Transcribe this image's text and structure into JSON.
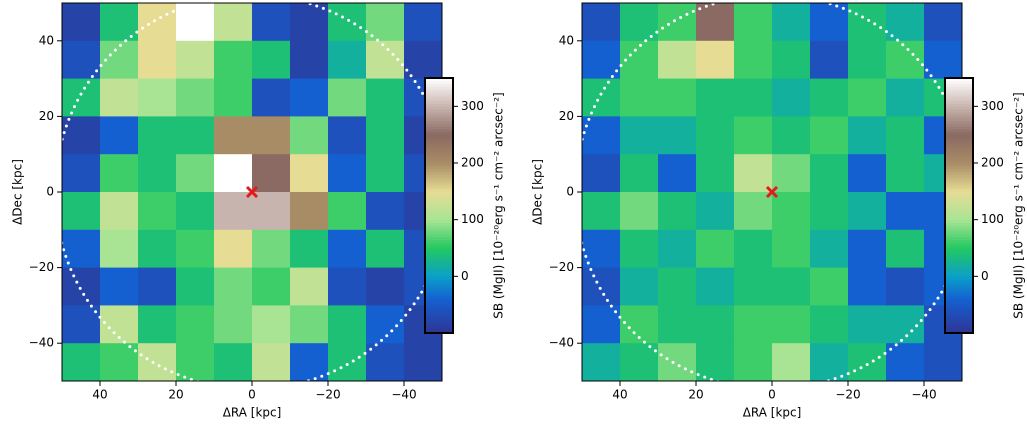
{
  "chart_data": [
    {
      "type": "heatmap",
      "xlabel": "ΔRA [kpc]",
      "ylabel": "ΔDec [kpc]",
      "xlim": [
        50,
        -50
      ],
      "ylim": [
        -50,
        50
      ],
      "xticks": [
        40,
        20,
        0,
        {
          "value": -20,
          "label": "−20"
        },
        {
          "value": -40,
          "label": "−40"
        }
      ],
      "yticks": [
        {
          "value": -40,
          "label": "−40"
        },
        {
          "value": -20,
          "label": "−20"
        },
        0,
        20,
        40
      ],
      "z": [
        [
          -80,
          40,
          150,
          350,
          120,
          -60,
          -80,
          40,
          80,
          -60
        ],
        [
          -60,
          80,
          150,
          120,
          60,
          40,
          -80,
          20,
          120,
          -80
        ],
        [
          40,
          120,
          100,
          80,
          60,
          -60,
          -40,
          80,
          40,
          -60
        ],
        [
          -80,
          -40,
          40,
          40,
          200,
          200,
          80,
          -60,
          40,
          -80
        ],
        [
          -60,
          60,
          40,
          80,
          350,
          250,
          150,
          -40,
          40,
          -60
        ],
        [
          40,
          120,
          60,
          40,
          300,
          300,
          200,
          60,
          -60,
          -80
        ],
        [
          -40,
          100,
          40,
          60,
          150,
          80,
          40,
          -40,
          40,
          -60
        ],
        [
          -80,
          -40,
          -60,
          40,
          80,
          60,
          120,
          -60,
          -80,
          -60
        ],
        [
          -60,
          120,
          40,
          60,
          80,
          100,
          80,
          40,
          -40,
          -80
        ],
        [
          40,
          60,
          120,
          60,
          40,
          120,
          -40,
          40,
          -60,
          -80
        ]
      ],
      "zlim": [
        -100,
        350
      ],
      "zticks": [
        0,
        100,
        200,
        300
      ],
      "colorbar_label": "SB (MgII) [10⁻²⁰erg s⁻¹ cm⁻² arcsec⁻²]",
      "marker": {
        "x": 0,
        "y": 0,
        "color": "#e41a1c"
      },
      "colormap": [
        {
          "value": -100,
          "color": "#2f3494"
        },
        {
          "value": -40,
          "color": "#1560d0"
        },
        {
          "value": 0,
          "color": "#0aa0c8"
        },
        {
          "value": 50,
          "color": "#22c860"
        },
        {
          "value": 100,
          "color": "#a8e494"
        },
        {
          "value": 150,
          "color": "#e6dc94"
        },
        {
          "value": 200,
          "color": "#a88c66"
        },
        {
          "value": 250,
          "color": "#8a6a62"
        },
        {
          "value": 300,
          "color": "#c8b4ae"
        },
        {
          "value": 350,
          "color": "#ffffff"
        }
      ]
    },
    {
      "type": "heatmap",
      "xlabel": "ΔRA [kpc]",
      "ylabel": "ΔDec [kpc]",
      "xlim": [
        50,
        -50
      ],
      "ylim": [
        -50,
        50
      ],
      "xticks": [
        40,
        20,
        0,
        {
          "value": -20,
          "label": "−20"
        },
        {
          "value": -40,
          "label": "−40"
        }
      ],
      "yticks": [
        {
          "value": -40,
          "label": "−40"
        },
        {
          "value": -20,
          "label": "−20"
        },
        0,
        20,
        40
      ],
      "z": [
        [
          -60,
          40,
          60,
          250,
          60,
          20,
          -40,
          40,
          20,
          -60
        ],
        [
          -40,
          60,
          120,
          150,
          60,
          40,
          -60,
          40,
          60,
          -40
        ],
        [
          40,
          60,
          60,
          40,
          40,
          20,
          40,
          60,
          20,
          40
        ],
        [
          -40,
          20,
          20,
          40,
          60,
          40,
          60,
          20,
          40,
          -40
        ],
        [
          -60,
          40,
          -40,
          40,
          120,
          80,
          40,
          -40,
          40,
          20
        ],
        [
          40,
          80,
          40,
          20,
          80,
          60,
          40,
          20,
          -40,
          -40
        ],
        [
          -40,
          40,
          20,
          60,
          40,
          60,
          20,
          -40,
          40,
          -40
        ],
        [
          -60,
          20,
          40,
          20,
          40,
          40,
          60,
          -40,
          -60,
          -40
        ],
        [
          -40,
          60,
          40,
          40,
          60,
          60,
          40,
          20,
          20,
          -60
        ],
        [
          20,
          40,
          80,
          40,
          60,
          100,
          20,
          40,
          -40,
          -60
        ]
      ],
      "zlim": [
        -100,
        350
      ],
      "zticks": [
        0,
        100,
        200,
        300
      ],
      "colorbar_label": "SB (MgII) [10⁻²⁰erg s⁻¹ cm⁻² arcsec⁻²]",
      "marker": {
        "x": 0,
        "y": 0,
        "color": "#e41a1c"
      },
      "colormap": [
        {
          "value": -100,
          "color": "#2f3494"
        },
        {
          "value": -40,
          "color": "#1560d0"
        },
        {
          "value": 0,
          "color": "#0aa0c8"
        },
        {
          "value": 50,
          "color": "#22c860"
        },
        {
          "value": 100,
          "color": "#a8e494"
        },
        {
          "value": 150,
          "color": "#e6dc94"
        },
        {
          "value": 200,
          "color": "#a88c66"
        },
        {
          "value": 250,
          "color": "#8a6a62"
        },
        {
          "value": 300,
          "color": "#c8b4ae"
        },
        {
          "value": 350,
          "color": "#ffffff"
        }
      ]
    }
  ]
}
